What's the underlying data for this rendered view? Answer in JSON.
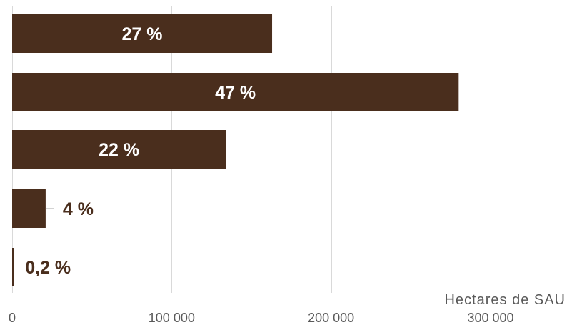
{
  "chart_data": {
    "type": "bar",
    "orientation": "horizontal",
    "values": [
      163000,
      280000,
      134000,
      21000,
      1000
    ],
    "data_labels": [
      "27 %",
      "47 %",
      "22 %",
      "4 %",
      "0,2 %"
    ],
    "xlim": [
      0,
      300000
    ],
    "xticks": [
      0,
      100000,
      200000,
      300000
    ],
    "xtick_labels": [
      "0",
      "100 000",
      "200 000",
      "300 000"
    ],
    "xlabel": "Hectares de SAU",
    "grid": "vertical",
    "legend": "none",
    "colors": {
      "bar": "#4a2e1d",
      "label_inside": "#ffffff",
      "label_outside": "#4a2e1d",
      "grid": "#d9d9d9",
      "tick_text": "#595959",
      "leader_line": "#a6a6a6"
    }
  }
}
